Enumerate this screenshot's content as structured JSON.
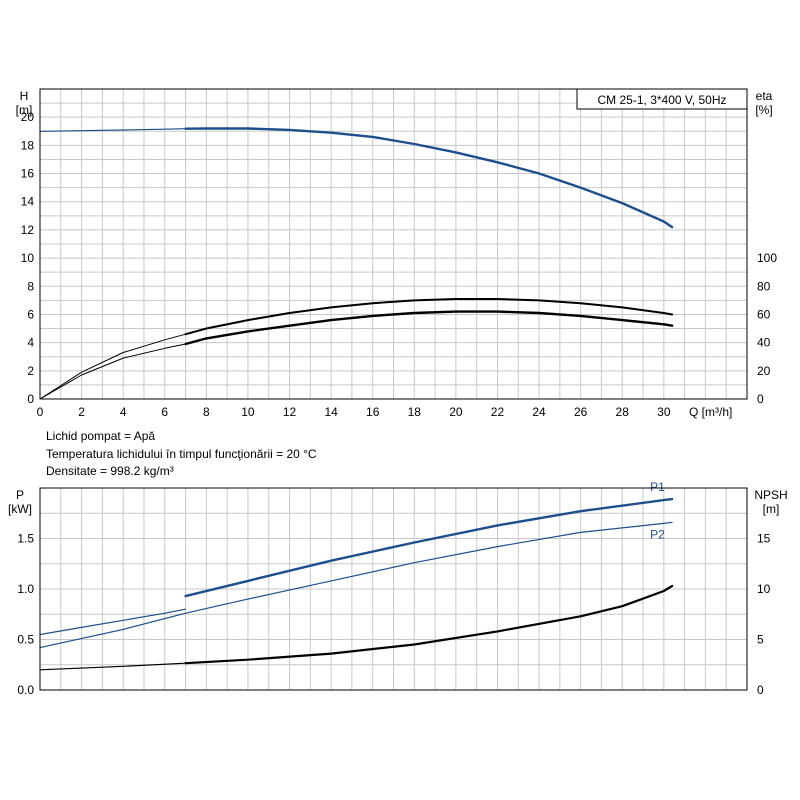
{
  "top_chart": {
    "legend_box": "CM 25-1, 3*400 V, 50Hz",
    "y_left_label": "H",
    "y_left_unit": "[m]",
    "y_right_label": "eta",
    "y_right_unit": "[%]",
    "x_label": "Q [m³/h]"
  },
  "fluid_info": {
    "line1": "Lichid pompat = Apă",
    "line2": "Temperatura lichidului în timpul funcţionării = 20 °C",
    "line3": "Densitate = 998.2 kg/m³"
  },
  "bottom_chart": {
    "y_left_label": "P",
    "y_left_unit": "[kW]",
    "y_right_label": "NPSH",
    "y_right_unit": "[m]"
  },
  "colors": {
    "blue": "#1f4e8c",
    "black": "#000000",
    "grid": "#c8c8c8"
  },
  "chart_data": [
    {
      "type": "line",
      "xlim": [
        0,
        34
      ],
      "ylim": [
        0,
        22
      ],
      "y2lim": [
        0,
        220
      ],
      "x_ticks": [
        0,
        2,
        4,
        6,
        8,
        10,
        12,
        14,
        16,
        18,
        20,
        22,
        24,
        26,
        28,
        30
      ],
      "y_ticks": [
        0,
        2,
        4,
        6,
        8,
        10,
        12,
        14,
        16,
        18,
        20
      ],
      "y2_ticks": [
        0,
        20,
        40,
        60,
        80,
        100
      ],
      "grid": true,
      "series": [
        {
          "axis": "left",
          "color": "#1f4e8c",
          "width": 1.2,
          "x": [
            0,
            2,
            4,
            6,
            7
          ],
          "y": [
            19,
            19.04,
            19.09,
            19.15,
            19.18
          ]
        },
        {
          "axis": "left",
          "color": "#1f4e8c",
          "width": 2.4,
          "x": [
            7,
            8,
            10,
            12,
            14,
            16,
            18,
            20,
            22,
            24,
            26,
            28,
            30,
            30.4
          ],
          "y": [
            19.18,
            19.2,
            19.2,
            19.1,
            18.9,
            18.6,
            18.1,
            17.5,
            16.8,
            16,
            15,
            13.9,
            12.6,
            12.2
          ]
        },
        {
          "axis": "right",
          "color": "#000000",
          "width": 1,
          "x": [
            0,
            2,
            4,
            6,
            7
          ],
          "y": [
            0,
            19,
            33,
            42,
            46
          ]
        },
        {
          "axis": "right",
          "color": "#000000",
          "width": 2,
          "x": [
            7,
            8,
            10,
            12,
            14,
            16,
            18,
            20,
            22,
            24,
            26,
            28,
            30,
            30.4
          ],
          "y": [
            46,
            50,
            56,
            61,
            65,
            68,
            70,
            71,
            71,
            70,
            68,
            65,
            61,
            60
          ]
        },
        {
          "axis": "right",
          "color": "#000000",
          "width": 1,
          "x": [
            0,
            2,
            4,
            6,
            7
          ],
          "y": [
            0,
            17,
            29,
            36,
            39
          ]
        },
        {
          "axis": "right",
          "color": "#000000",
          "width": 2.4,
          "x": [
            7,
            8,
            10,
            12,
            14,
            16,
            18,
            20,
            22,
            24,
            26,
            28,
            30,
            30.4
          ],
          "y": [
            39,
            43,
            48,
            52,
            56,
            59,
            61,
            62,
            62,
            61,
            59,
            56,
            53,
            52
          ]
        }
      ]
    },
    {
      "type": "line",
      "xlim": [
        0,
        34
      ],
      "ylim": [
        0,
        2.0
      ],
      "y2lim": [
        0,
        20
      ],
      "x_ticks": [
        0,
        2,
        4,
        6,
        8,
        10,
        12,
        14,
        16,
        18,
        20,
        22,
        24,
        26,
        28,
        30
      ],
      "y_ticks": [
        0.0,
        0.5,
        1.0,
        1.5
      ],
      "y2_ticks": [
        0,
        5,
        10,
        15
      ],
      "grid": true,
      "series": [
        {
          "axis": "left",
          "color": "#1f4e8c",
          "width": 1.2,
          "x": [
            0,
            2,
            4,
            6,
            7
          ],
          "y": [
            0.55,
            0.62,
            0.69,
            0.76,
            0.8
          ]
        },
        {
          "axis": "left",
          "color": "#1f4e8c",
          "width": 2.4,
          "name": "P1",
          "x": [
            7,
            10,
            14,
            18,
            22,
            26,
            30,
            30.4
          ],
          "y": [
            0.93,
            1.08,
            1.28,
            1.46,
            1.63,
            1.77,
            1.88,
            1.89
          ]
        },
        {
          "axis": "left",
          "color": "#1f4e8c",
          "width": 1.2,
          "name": "P2",
          "x": [
            0,
            4,
            7,
            10,
            14,
            18,
            22,
            26,
            30,
            30.4
          ],
          "y": [
            0.42,
            0.6,
            0.76,
            0.9,
            1.08,
            1.26,
            1.42,
            1.56,
            1.65,
            1.66
          ]
        },
        {
          "axis": "right",
          "color": "#000000",
          "width": 1.2,
          "x": [
            0,
            4,
            7
          ],
          "y": [
            2.0,
            2.35,
            2.65
          ]
        },
        {
          "axis": "right",
          "color": "#000000",
          "width": 2.2,
          "x": [
            7,
            10,
            14,
            18,
            22,
            26,
            28,
            30,
            30.4
          ],
          "y": [
            2.65,
            3.0,
            3.6,
            4.5,
            5.8,
            7.3,
            8.3,
            9.8,
            10.3
          ]
        }
      ]
    }
  ]
}
